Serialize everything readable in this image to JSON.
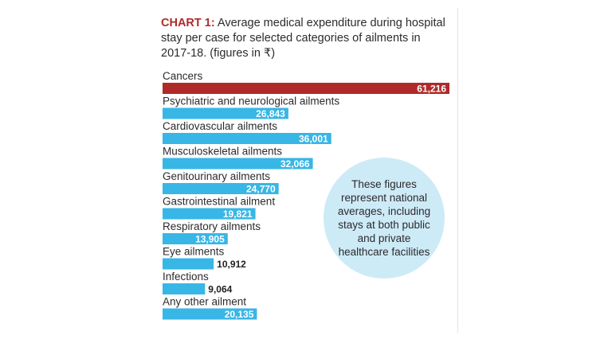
{
  "chart_data": {
    "type": "bar",
    "orientation": "horizontal",
    "title_prefix": "CHART 1:",
    "title": "Average medical expenditure during hospital stay per case for selected categories of ailments in 2017-18. (figures in ₹)",
    "categories": [
      "Cancers",
      "Psychiatric and neurological ailments",
      "Cardiovascular ailments",
      "Musculoskeletal ailments",
      "Genitourinary ailments",
      "Gastrointestinal ailment",
      "Respiratory ailments",
      "Eye ailments",
      "Infections",
      "Any other ailment"
    ],
    "values": [
      61216,
      26843,
      36001,
      32066,
      24770,
      19821,
      13905,
      10912,
      9064,
      20135
    ],
    "value_labels": [
      "61,216",
      "26,843",
      "36,001",
      "32,066",
      "24,770",
      "19,821",
      "13,905",
      "10,912",
      "9,064",
      "20,135"
    ],
    "xlim": [
      0,
      61216
    ],
    "colors": {
      "highlight": "#b02a2a",
      "bar": "#38b6e6",
      "label_inside": "#ffffff",
      "label_outside": "#222222",
      "title_prefix": "#b02a2a",
      "note_bg": "#cdeaf7"
    },
    "annotation": "These figures represent national averages, including stays at both public and private healthcare facilities"
  }
}
